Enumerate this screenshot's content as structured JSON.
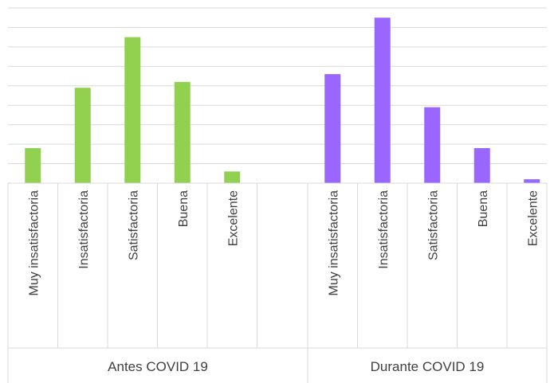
{
  "chart_data": {
    "type": "bar",
    "groups": [
      {
        "label": "Antes COVID 19",
        "color": "#92d050",
        "categories": [
          "Muy insatisfactoria",
          "Insatisfactoria",
          "Satisfactoria",
          "Buena",
          "Excelente",
          ""
        ],
        "values": [
          18,
          49,
          75,
          52,
          6,
          null
        ]
      },
      {
        "label": "Durante COVID 19",
        "color": "#9966ff",
        "categories": [
          "Muy insatisfactoria",
          "Insatisfactoria",
          "Satisfactoria",
          "Buena",
          "Excelente"
        ],
        "values": [
          56,
          85,
          39,
          18,
          2
        ]
      }
    ],
    "ylim": [
      0,
      90
    ],
    "y_gridline_step": 10,
    "y_tick_labels_visible": false,
    "grid": true,
    "title": "",
    "xlabel": "",
    "ylabel": ""
  }
}
